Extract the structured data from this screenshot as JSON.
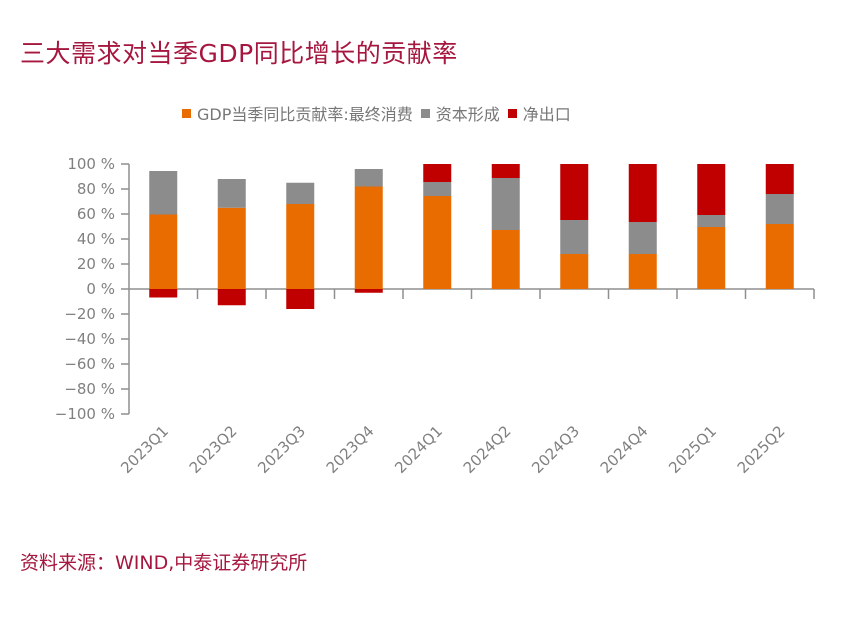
{
  "title": "三大需求对当季GDP同比增长的贡献率",
  "source": "资料来源：WIND,中泰证券研究所",
  "chart_data": {
    "type": "bar",
    "stacked": true,
    "title": "三大需求对当季GDP同比增长的贡献率",
    "xlabel": "",
    "ylabel": "",
    "ylim": [
      -100,
      100
    ],
    "yticks": [
      100,
      80,
      60,
      40,
      20,
      0,
      -20,
      -40,
      -60,
      -80,
      -100
    ],
    "ytick_labels": [
      "100 %",
      "80 %",
      "60 %",
      "40 %",
      "20 %",
      "0 %",
      "−20 %",
      "−40 %",
      "−60 %",
      "−80 %",
      "−100 %"
    ],
    "grid": false,
    "legend_position": "top",
    "categories": [
      "2023Q1",
      "2023Q2",
      "2023Q3",
      "2023Q4",
      "2024Q1",
      "2024Q2",
      "2024Q3",
      "2024Q4",
      "2025Q1",
      "2025Q2"
    ],
    "series": [
      {
        "name": "GDP当季同比贡献率:最终消费",
        "color": "#e86c00",
        "values": [
          59.6,
          65.0,
          68.0,
          82.0,
          74.4,
          47.2,
          28.0,
          28.0,
          49.6,
          52.0
        ]
      },
      {
        "name": "资本形成",
        "color": "#8c8c8c",
        "values": [
          34.8,
          23.0,
          17.0,
          14.0,
          11.2,
          41.6,
          27.2,
          25.6,
          9.6,
          24.0
        ]
      },
      {
        "name": "净出口",
        "color": "#c00000",
        "values": [
          -6.8,
          -13.0,
          -16.0,
          -3.0,
          14.4,
          11.2,
          44.8,
          46.4,
          40.8,
          24.0
        ]
      }
    ]
  }
}
